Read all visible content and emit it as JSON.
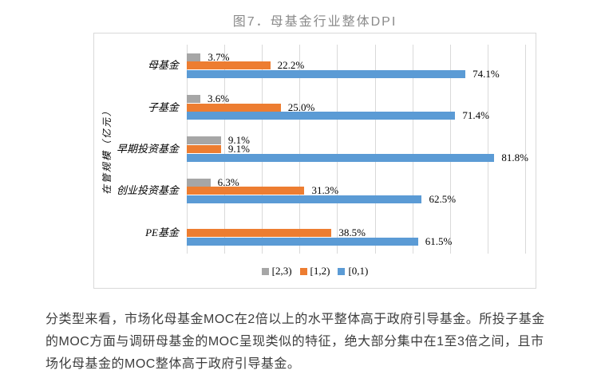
{
  "chart_data": {
    "type": "bar",
    "orientation": "horizontal",
    "title": "图7．母基金行业整体DPI",
    "ylabel": "在管规模（亿元）",
    "xlabel": "",
    "categories": [
      "母基金",
      "子基金",
      "早期投资基金",
      "创业投资基金",
      "PE基金"
    ],
    "series": [
      {
        "name": "[2,3)",
        "color": "#a6a6a6",
        "values": [
          3.7,
          3.6,
          9.1,
          6.3,
          null
        ]
      },
      {
        "name": "[1,2)",
        "color": "#ed7d31",
        "values": [
          22.2,
          25.0,
          9.1,
          31.3,
          38.5
        ]
      },
      {
        "name": "[0,1)",
        "color": "#5b9bd5",
        "values": [
          74.1,
          71.4,
          81.8,
          62.5,
          61.5
        ]
      }
    ],
    "value_labels": [
      [
        "3.7%",
        "3.6%",
        "9.1%",
        "6.3%",
        null
      ],
      [
        "22.2%",
        "25.0%",
        "9.1%",
        "31.3%",
        "38.5%"
      ],
      [
        "74.1%",
        "71.4%",
        "81.8%",
        "62.5%",
        "61.5%"
      ]
    ],
    "xlim": [
      0,
      90
    ],
    "gridline_step": 10,
    "grid": true,
    "legend_position": "bottom"
  },
  "paragraph": {
    "lines": [
      "分类型来看，市场化母基金MOC在2倍以上的水平整体高于政府引导基金。所投子基金",
      "的MOC方面与调研母基金的MOC呈现类似的特征，绝大部分集中在1至3倍之间，且市",
      "场化母基金的MOC整体高于政府引导基金。"
    ]
  },
  "colors": {
    "grid": "#d9d9d9",
    "chart_border": "#d9d9d9",
    "title_text": "#8a8a8a",
    "caption_text": "#3d3d3d",
    "label_text": "#000000"
  }
}
